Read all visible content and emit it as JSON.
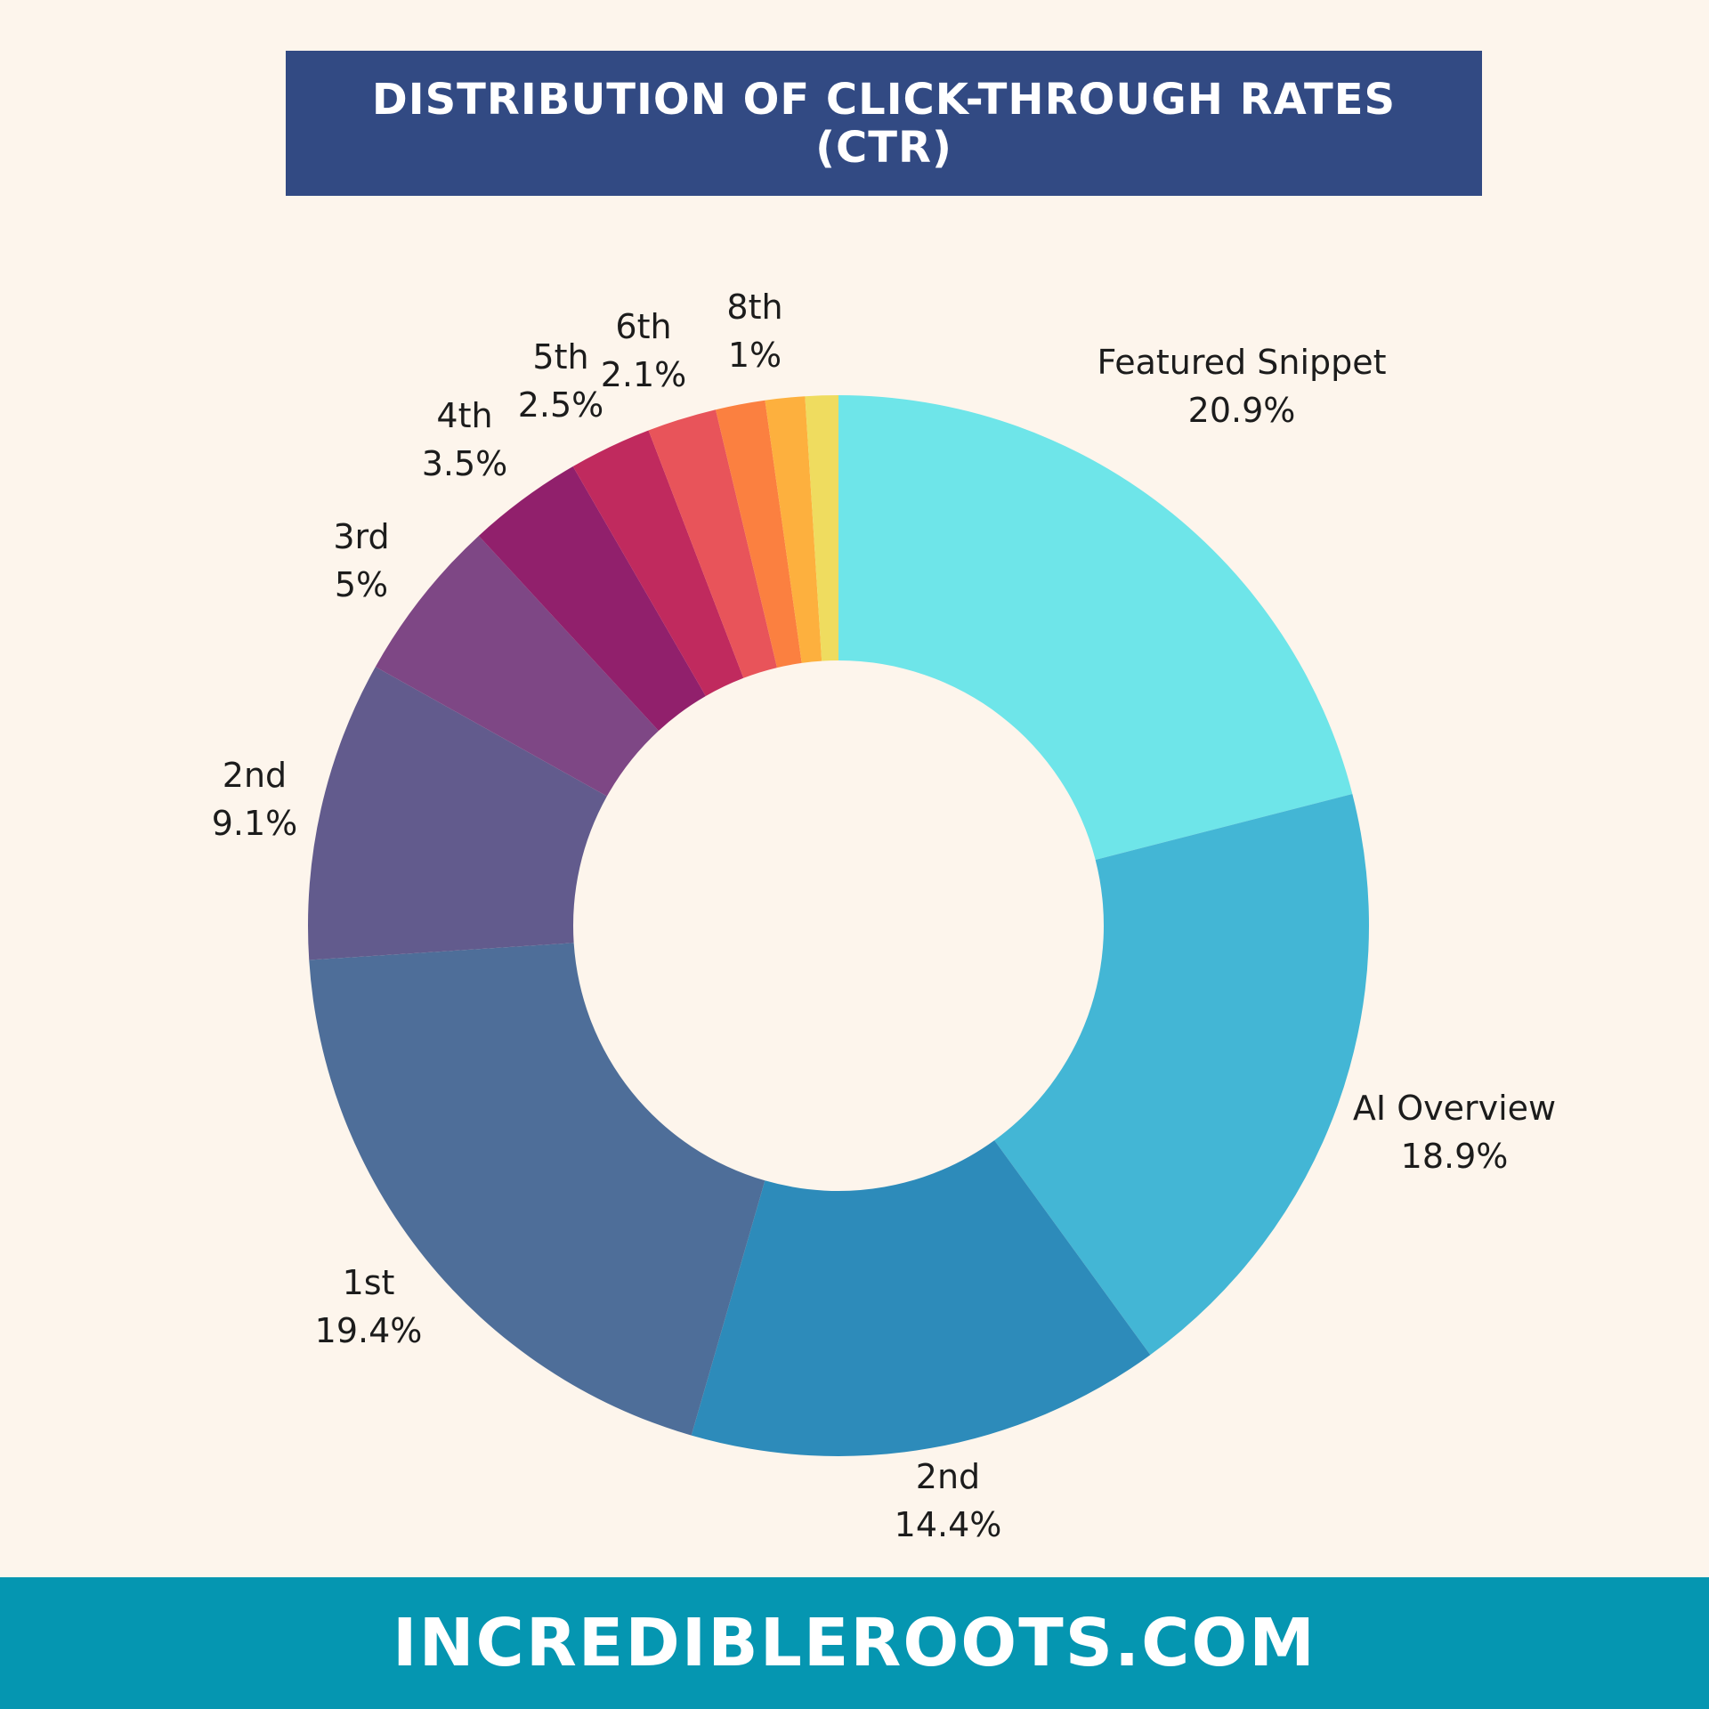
{
  "title": "DISTRIBUTION OF CLICK-THROUGH RATES (CTR)",
  "footer": "INCREDIBLEROOTS.COM",
  "chart_data": {
    "type": "pie",
    "donut": true,
    "title": "DISTRIBUTION OF CLICK-THROUGH RATES (CTR)",
    "categories": [
      "Featured Snippet",
      "AI Overview",
      "2nd",
      "1st",
      "2nd",
      "3rd",
      "4th",
      "5th",
      "6th",
      "",
      "",
      "8th"
    ],
    "values": [
      20.9,
      18.9,
      14.4,
      19.4,
      9.1,
      5,
      3.5,
      2.5,
      2.1,
      1.5,
      1.2,
      1
    ],
    "value_labels": [
      "20.9%",
      "18.9%",
      "14.4%",
      "19.4%",
      "9.1%",
      "5%",
      "3.5%",
      "2.5%",
      "2.1%",
      "",
      "",
      "1%"
    ],
    "colors": [
      "#6ee5e9",
      "#43b6d5",
      "#2d8bba",
      "#4e6e99",
      "#625b8d",
      "#7e4785",
      "#91206c",
      "#c02a5e",
      "#e8545a",
      "#fb8040",
      "#fdb03e",
      "#efdc5f",
      "#a8d86a"
    ],
    "legend": "none"
  }
}
